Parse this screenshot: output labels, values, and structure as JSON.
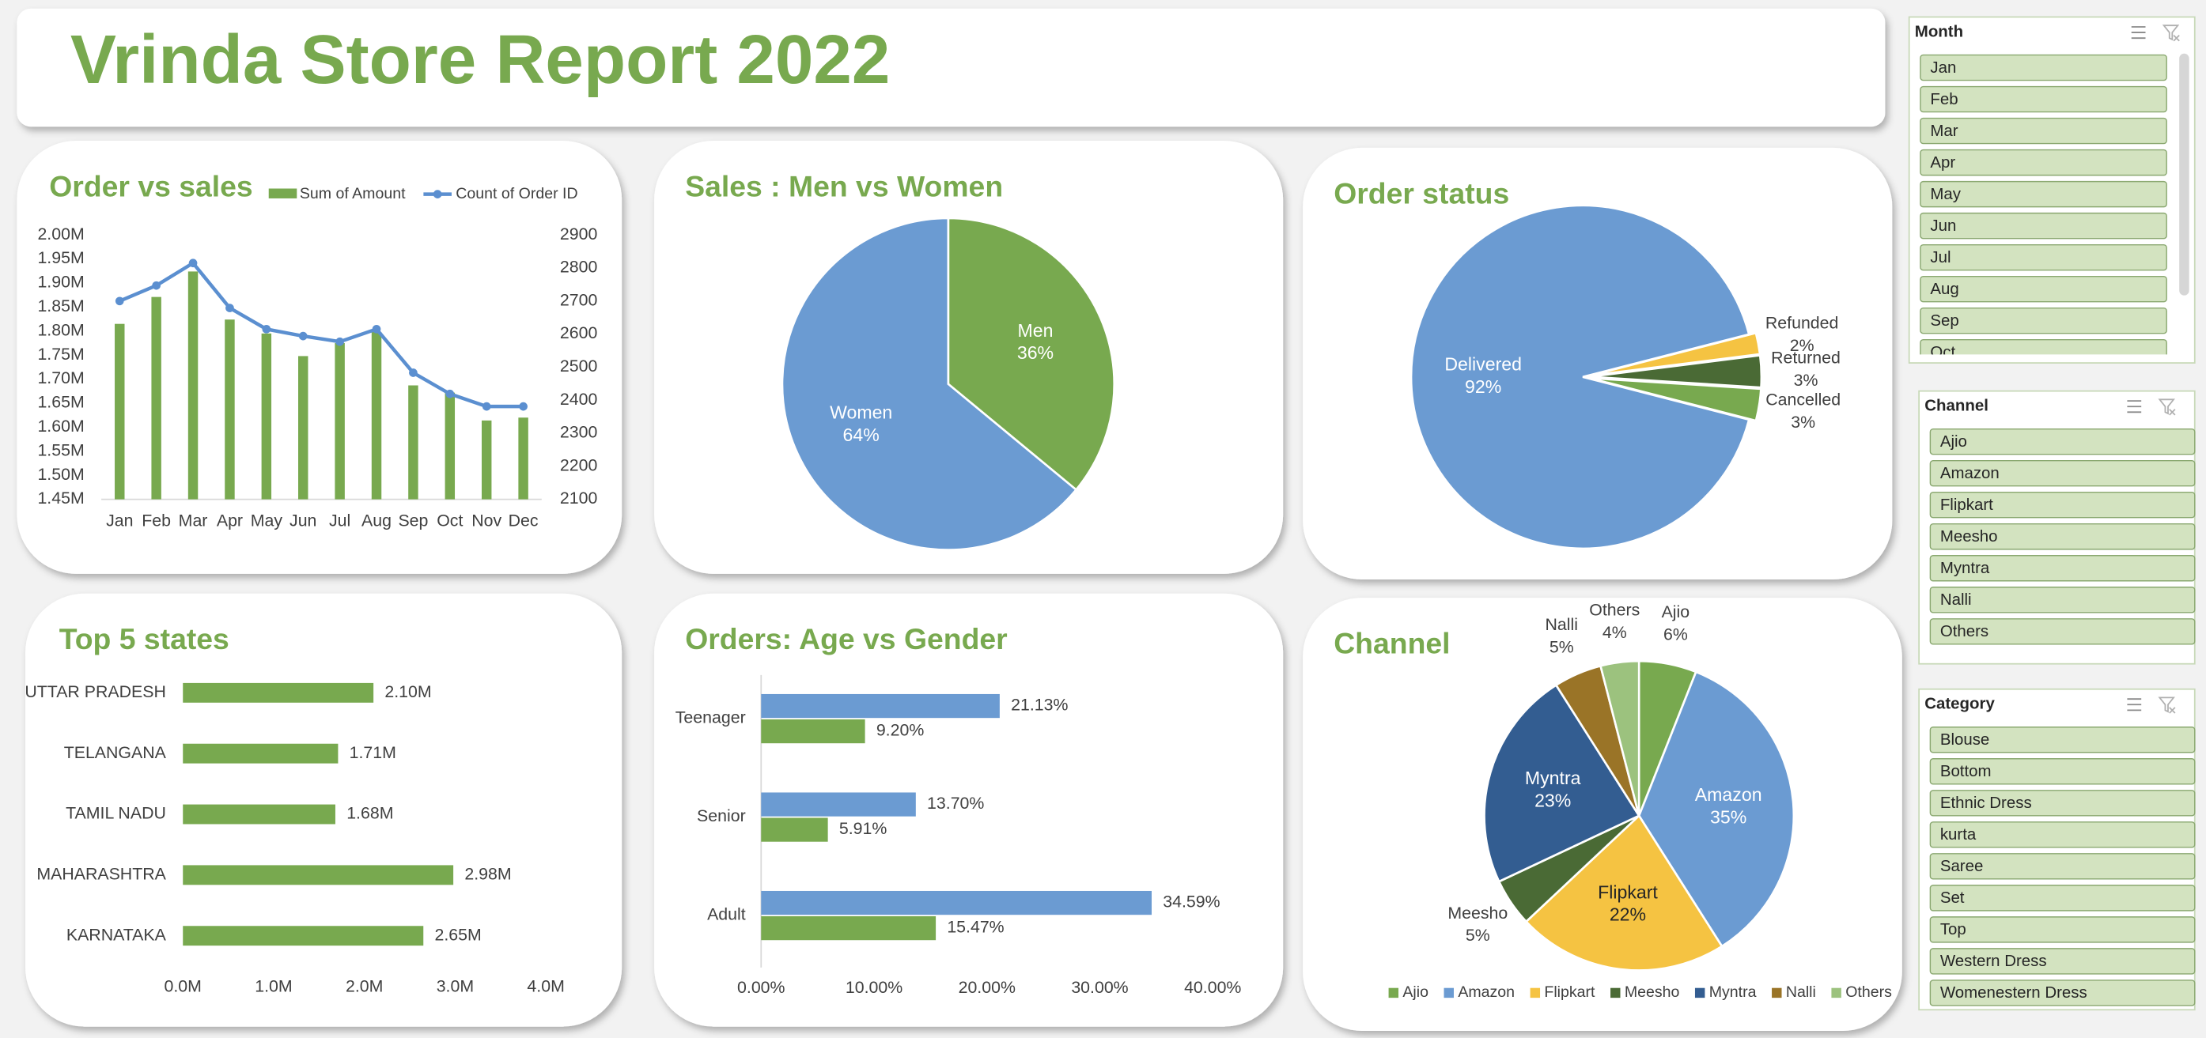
{
  "header": {
    "title": "Vrinda Store Report 2022"
  },
  "chart_data": [
    {
      "type": "combo",
      "title": "Order vs sales",
      "categories": [
        "Jan",
        "Feb",
        "Mar",
        "Apr",
        "May",
        "Jun",
        "Jul",
        "Aug",
        "Sep",
        "Oct",
        "Nov",
        "Dec"
      ],
      "series": [
        {
          "name": "Sum of Amount",
          "type": "bar",
          "color": "#78a94f",
          "values": [
            1.815,
            1.871,
            1.924,
            1.824,
            1.795,
            1.748,
            1.775,
            1.798,
            1.687,
            1.672,
            1.614,
            1.62
          ]
        },
        {
          "name": "Count of Order ID",
          "type": "line",
          "axis": "y2",
          "color": "#5b8fd0",
          "values": [
            2700,
            2747,
            2815,
            2679,
            2615,
            2594,
            2577,
            2615,
            2483,
            2419,
            2381,
            2381
          ]
        }
      ],
      "ylim": [
        1.45,
        2.0
      ],
      "yticks": [
        {
          "value": 1.45,
          "label": "1.45M"
        },
        {
          "value": 1.5,
          "label": "1.50M"
        },
        {
          "value": 1.55,
          "label": "1.55M"
        },
        {
          "value": 1.6,
          "label": "1.60M"
        },
        {
          "value": 1.65,
          "label": "1.65M"
        },
        {
          "value": 1.7,
          "label": "1.70M"
        },
        {
          "value": 1.75,
          "label": "1.75M"
        },
        {
          "value": 1.8,
          "label": "1.80M"
        },
        {
          "value": 1.85,
          "label": "1.85M"
        },
        {
          "value": 1.9,
          "label": "1.90M"
        },
        {
          "value": 1.95,
          "label": "1.95M"
        },
        {
          "value": 2.0,
          "label": "2.00M"
        }
      ],
      "y2lim": [
        2100,
        2900
      ],
      "y2ticks": [
        2100,
        2200,
        2300,
        2400,
        2500,
        2600,
        2700,
        2800,
        2900
      ]
    },
    {
      "type": "pie",
      "title": "Sales : Men vs Women",
      "categories": [
        "Men",
        "Women"
      ],
      "values": [
        36,
        64
      ],
      "value_labels": [
        "36%",
        "64%"
      ],
      "colors": [
        "#78a94f",
        "#6b9bd2"
      ]
    },
    {
      "type": "pie",
      "title": "Order status",
      "categories": [
        "Delivered",
        "Refunded",
        "Returned",
        "Cancelled"
      ],
      "values": [
        92,
        2,
        3,
        3
      ],
      "value_labels": [
        "92%",
        "2%",
        "3%",
        "3%"
      ],
      "colors": [
        "#6b9bd2",
        "#f5c342",
        "#4a6a35",
        "#78a94f"
      ]
    },
    {
      "type": "hbar",
      "title": "Top 5 states",
      "categories": [
        "UTTAR PRADESH",
        "TELANGANA",
        "TAMIL NADU",
        "MAHARASHTRA",
        "KARNATAKA"
      ],
      "values": [
        2.1,
        1.71,
        1.68,
        2.98,
        2.65
      ],
      "value_labels": [
        "2.10M",
        "1.71M",
        "1.68M",
        "2.98M",
        "2.65M"
      ],
      "color": "#78a94f",
      "xlim": [
        0,
        4
      ],
      "xticks": [
        {
          "value": 0,
          "label": "0.0M"
        },
        {
          "value": 1,
          "label": "1.0M"
        },
        {
          "value": 2,
          "label": "2.0M"
        },
        {
          "value": 3,
          "label": "3.0M"
        },
        {
          "value": 4,
          "label": "4.0M"
        }
      ]
    },
    {
      "type": "hbar",
      "title": "Orders: Age vs Gender",
      "categories": [
        "Teenager",
        "Senior",
        "Adult"
      ],
      "series": [
        {
          "color": "#6b9bd2",
          "values": [
            21.13,
            13.7,
            34.59
          ],
          "value_labels": [
            "21.13%",
            "13.70%",
            "34.59%"
          ]
        },
        {
          "color": "#78a94f",
          "values": [
            9.2,
            5.91,
            15.47
          ],
          "value_labels": [
            "9.20%",
            "5.91%",
            "15.47%"
          ]
        }
      ],
      "xlim": [
        0,
        40
      ],
      "xticks": [
        {
          "value": 0,
          "label": "0.00%"
        },
        {
          "value": 10,
          "label": "10.00%"
        },
        {
          "value": 20,
          "label": "20.00%"
        },
        {
          "value": 30,
          "label": "30.00%"
        },
        {
          "value": 40,
          "label": "40.00%"
        }
      ]
    },
    {
      "type": "pie",
      "title": "Channel",
      "categories": [
        "Ajio",
        "Amazon",
        "Flipkart",
        "Meesho",
        "Myntra",
        "Nalli",
        "Others"
      ],
      "values": [
        6,
        35,
        22,
        5,
        23,
        5,
        4
      ],
      "value_labels": [
        "6%",
        "35%",
        "22%",
        "5%",
        "23%",
        "5%",
        "4%"
      ],
      "colors": [
        "#78a94f",
        "#6b9bd2",
        "#f5c342",
        "#4a6a35",
        "#335d91",
        "#9a7427",
        "#9cc27e"
      ],
      "legend": "bottom"
    }
  ],
  "slicers": [
    {
      "title": "Month",
      "items": [
        "Jan",
        "Feb",
        "Mar",
        "Apr",
        "May",
        "Jun",
        "Jul",
        "Aug",
        "Sep",
        "Oct"
      ]
    },
    {
      "title": "Channel",
      "items": [
        "Ajio",
        "Amazon",
        "Flipkart",
        "Meesho",
        "Myntra",
        "Nalli",
        "Others"
      ]
    },
    {
      "title": "Category",
      "items": [
        "Blouse",
        "Bottom",
        "Ethnic Dress",
        "kurta",
        "Saree",
        "Set",
        "Top",
        "Western Dress",
        "Womenestern Dress"
      ]
    }
  ]
}
